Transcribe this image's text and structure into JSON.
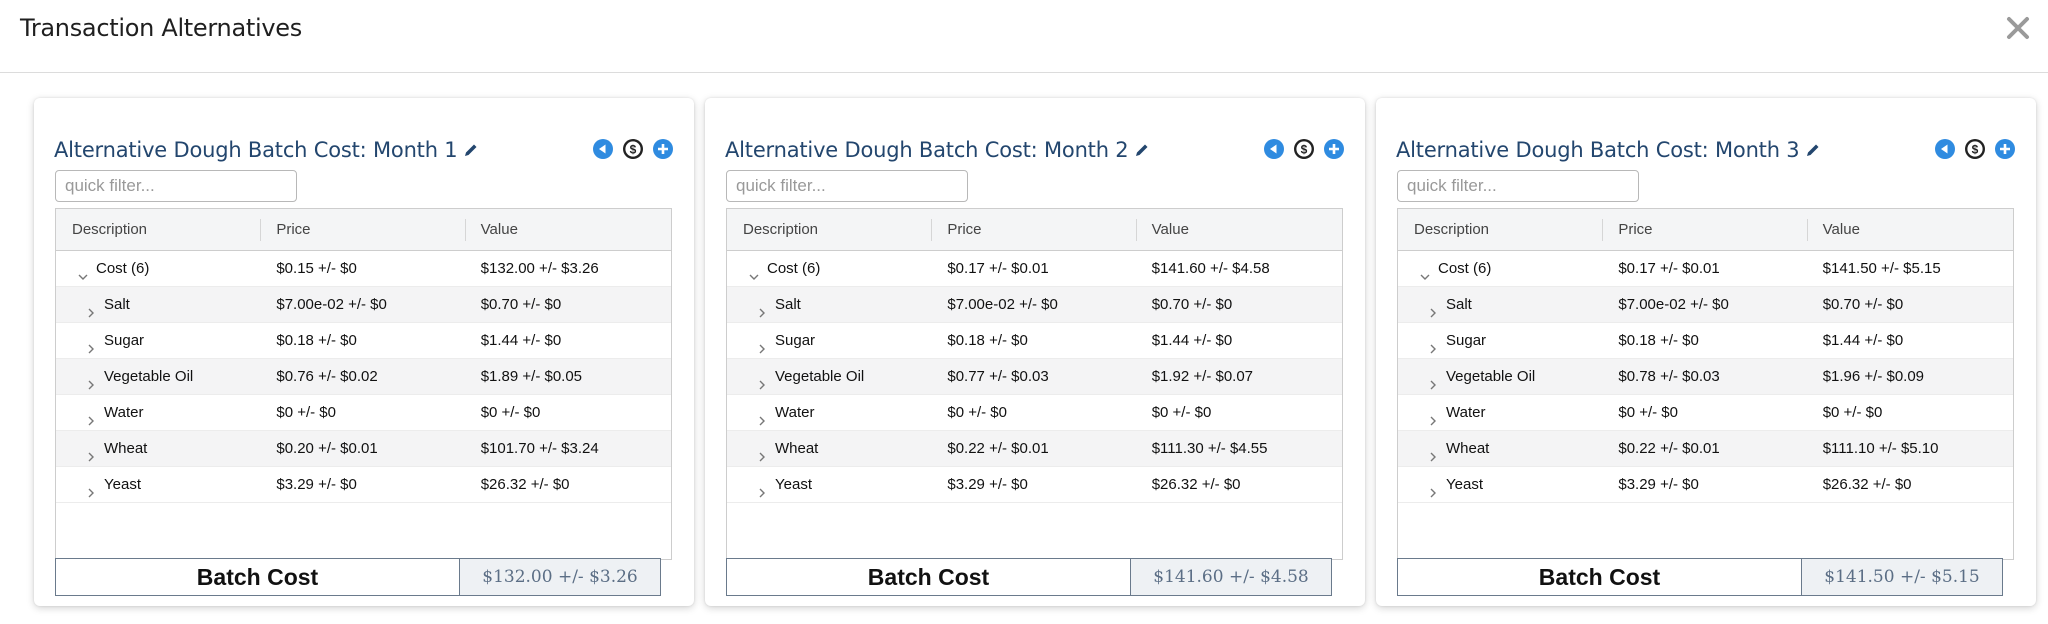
{
  "modal": {
    "title": "Transaction Alternatives"
  },
  "colors": {
    "title": "#23466e",
    "accent": "#2f8be0"
  },
  "cards": [
    {
      "title": "Alternative Dough Batch Cost: Month 1",
      "filter_placeholder": "quick filter...",
      "columns": [
        "Description",
        "Price",
        "Value"
      ],
      "rows": [
        [
          "Cost (6)",
          "$0.15 +/- $0",
          "$132.00 +/- $3.26"
        ],
        [
          "Salt",
          "$7.00e-02 +/- $0",
          "$0.70 +/- $0"
        ],
        [
          "Sugar",
          "$0.18 +/- $0",
          "$1.44 +/- $0"
        ],
        [
          "Vegetable Oil",
          "$0.76 +/- $0.02",
          "$1.89 +/- $0.05"
        ],
        [
          "Water",
          "$0 +/- $0",
          "$0 +/- $0"
        ],
        [
          "Wheat",
          "$0.20 +/- $0.01",
          "$101.70 +/- $3.24"
        ],
        [
          "Yeast",
          "$3.29 +/- $0",
          "$26.32 +/- $0"
        ]
      ],
      "batch_label": "Batch Cost",
      "batch_value": "$132.00 +/- $3.26"
    },
    {
      "title": "Alternative Dough Batch Cost: Month 2",
      "filter_placeholder": "quick filter...",
      "columns": [
        "Description",
        "Price",
        "Value"
      ],
      "rows": [
        [
          "Cost (6)",
          "$0.17 +/- $0.01",
          "$141.60 +/- $4.58"
        ],
        [
          "Salt",
          "$7.00e-02 +/- $0",
          "$0.70 +/- $0"
        ],
        [
          "Sugar",
          "$0.18 +/- $0",
          "$1.44 +/- $0"
        ],
        [
          "Vegetable Oil",
          "$0.77 +/- $0.03",
          "$1.92 +/- $0.07"
        ],
        [
          "Water",
          "$0 +/- $0",
          "$0 +/- $0"
        ],
        [
          "Wheat",
          "$0.22 +/- $0.01",
          "$111.30 +/- $4.55"
        ],
        [
          "Yeast",
          "$3.29 +/- $0",
          "$26.32 +/- $0"
        ]
      ],
      "batch_label": "Batch Cost",
      "batch_value": "$141.60 +/- $4.58"
    },
    {
      "title": "Alternative Dough Batch Cost: Month 3",
      "filter_placeholder": "quick filter...",
      "columns": [
        "Description",
        "Price",
        "Value"
      ],
      "rows": [
        [
          "Cost (6)",
          "$0.17 +/- $0.01",
          "$141.50 +/- $5.15"
        ],
        [
          "Salt",
          "$7.00e-02 +/- $0",
          "$0.70 +/- $0"
        ],
        [
          "Sugar",
          "$0.18 +/- $0",
          "$1.44 +/- $0"
        ],
        [
          "Vegetable Oil",
          "$0.78 +/- $0.03",
          "$1.96 +/- $0.09"
        ],
        [
          "Water",
          "$0 +/- $0",
          "$0 +/- $0"
        ],
        [
          "Wheat",
          "$0.22 +/- $0.01",
          "$111.10 +/- $5.10"
        ],
        [
          "Yeast",
          "$3.29 +/- $0",
          "$26.32 +/- $0"
        ]
      ],
      "batch_label": "Batch Cost",
      "batch_value": "$141.50 +/- $5.15"
    }
  ]
}
